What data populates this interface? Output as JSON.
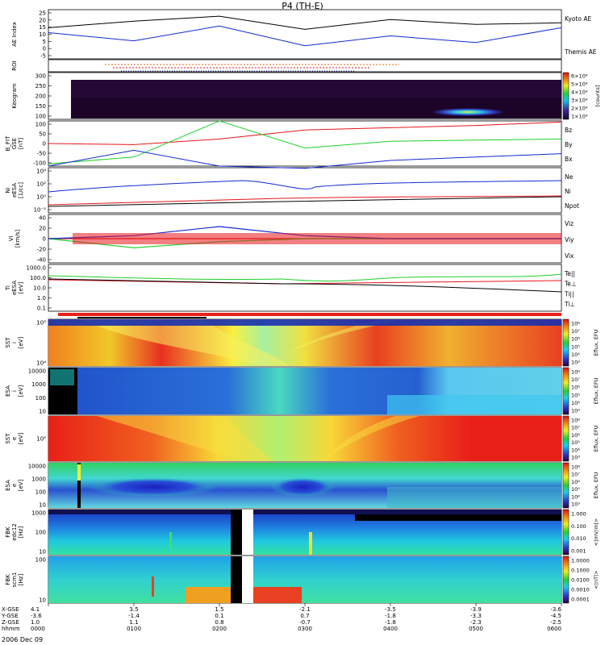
{
  "title": "P4 (TH-E)",
  "date": "2006 Dec 09",
  "colors": {
    "red": "#e8151b",
    "green": "#1fd02c",
    "blue": "#1428d2",
    "black": "#000000"
  },
  "panels": [
    {
      "id": "ae",
      "ylabel": "AE Index",
      "ticks": [
        "25",
        "20",
        "15",
        "10",
        "5",
        "0",
        "-5"
      ],
      "legend": [
        {
          "text": "Kyoto AE",
          "color": "blue"
        },
        {
          "text": "Themis AE",
          "color": "black"
        }
      ]
    },
    {
      "id": "roi",
      "ylabel": "ROI",
      "ticks": [],
      "legend": []
    },
    {
      "id": "keogram",
      "ylabel": "Keogram",
      "ticks": [
        "300",
        "250",
        "200",
        "150",
        "100"
      ],
      "colorbar_unit": "[counts]",
      "colorbar_ticks": [
        "6×10⁴",
        "5×10⁴",
        "4×10⁴",
        "3×10⁴",
        "2×10⁴",
        "1×10⁴"
      ]
    },
    {
      "id": "bfit",
      "ylabel": "B_FIT\nGSE\n[nT]",
      "ticks": [
        "100",
        "50",
        "0",
        "-50",
        "-100"
      ],
      "legend": [
        {
          "text": "Bz",
          "color": "red"
        },
        {
          "text": "By",
          "color": "green"
        },
        {
          "text": "Bx",
          "color": "blue"
        }
      ]
    },
    {
      "id": "ni",
      "ylabel": "Ni\neESA\n[1/cc]",
      "ticks": [
        "10⁴",
        "10²",
        "10⁰",
        "10⁻²"
      ],
      "legend": [
        {
          "text": "Ne",
          "color": "red"
        },
        {
          "text": "Ni",
          "color": "blue"
        },
        {
          "text": "Npot",
          "color": "blue"
        }
      ]
    },
    {
      "id": "vi",
      "ylabel": "Vi\n[km/s]",
      "ticks": [
        "40",
        "20",
        "0",
        "-20",
        "-40"
      ],
      "legend": [
        {
          "text": "Viz",
          "color": "red"
        },
        {
          "text": "Viy",
          "color": "green"
        },
        {
          "text": "Vix",
          "color": "blue"
        }
      ]
    },
    {
      "id": "ti",
      "ylabel": "Ti\neESA\n[eV]",
      "ticks": [
        "1000.0",
        "100.0",
        "10.0",
        "1.0",
        "0.1"
      ],
      "legend": [
        {
          "text": "Te||",
          "color": "black"
        },
        {
          "text": "Te⊥",
          "color": "red"
        },
        {
          "text": "Ti||",
          "color": "green"
        },
        {
          "text": "Ti⊥",
          "color": "blue"
        }
      ]
    },
    {
      "id": "sst_i",
      "ylabel": "SST\ni\n[eV]",
      "ticks": [
        "10⁵",
        "10⁴"
      ]
    },
    {
      "id": "esa_i",
      "ylabel": "ESA\ni\n[eV]",
      "ticks": [
        "10000",
        "1000",
        "100",
        "10"
      ]
    },
    {
      "id": "sst_e",
      "ylabel": "SST\ne\n[eV]",
      "ticks": [
        "10⁵"
      ]
    },
    {
      "id": "esa_e",
      "ylabel": "ESA\ne\n[eV]",
      "ticks": [
        "10000",
        "1000",
        "100",
        "10"
      ]
    },
    {
      "id": "fbk_e",
      "ylabel": "FBK\nedc12\n[Hz]",
      "ticks": [
        "1000",
        "100",
        "10"
      ]
    },
    {
      "id": "fbk_b",
      "ylabel": "FBK\nscm1\n[Hz]",
      "ticks": [
        "100",
        "10"
      ]
    }
  ],
  "spectra_colorbar": {
    "unit": "Eflux, EFU",
    "ticks": [
      "10⁸",
      "10⁷",
      "10⁶",
      "10⁵",
      "10⁴",
      "10³"
    ]
  },
  "fbk_colorbars": [
    {
      "unit": "<|mV/m|>",
      "ticks": [
        "1.000",
        "0.100",
        "0.010",
        "0.001"
      ]
    },
    {
      "unit": "<|nT|>",
      "ticks": [
        "1.0000",
        "0.1000",
        "0.0100",
        "0.0010",
        "0.0001"
      ]
    }
  ],
  "xaxis": {
    "row_labels": [
      "X-GSE",
      "Y-GSE",
      "Z-GSE",
      "hhmm"
    ],
    "columns": [
      [
        "4.1",
        "-3.6",
        "1.0",
        "0000"
      ],
      [
        "3.5",
        "-1.4",
        "1.1",
        "0100"
      ],
      [
        "1.5",
        "0.1",
        "0.8",
        "0200"
      ],
      [
        "-2.1",
        "0.7",
        "-0.7",
        "0300"
      ],
      [
        "-3.5",
        "-1.8",
        "-1.8",
        "0400"
      ],
      [
        "-3.9",
        "-3.3",
        "-2.3",
        "0500"
      ],
      [
        "-3.6",
        "-4.5",
        "-2.5",
        "0600"
      ]
    ]
  },
  "chart_data": {
    "type": "line",
    "title": "P4 (TH-E)",
    "x": [
      "0000",
      "0100",
      "0200",
      "0300",
      "0400",
      "0500",
      "0600"
    ],
    "series": [
      {
        "name": "Kyoto AE",
        "values": [
          11,
          6,
          15,
          3,
          9,
          5,
          14
        ]
      },
      {
        "name": "Themis AE",
        "values": [
          14,
          18,
          21,
          13,
          19,
          16,
          17
        ]
      },
      {
        "name": "Bz",
        "values": [
          0,
          -5,
          20,
          60,
          70,
          80,
          95
        ]
      },
      {
        "name": "By",
        "values": [
          -90,
          -60,
          100,
          -20,
          10,
          15,
          20
        ]
      },
      {
        "name": "Bx",
        "values": [
          -100,
          -30,
          -100,
          -110,
          -75,
          -60,
          -45
        ]
      },
      {
        "name": "Vix",
        "values": [
          0,
          5,
          20,
          5,
          0,
          0,
          0
        ]
      },
      {
        "name": "Viy",
        "values": [
          0,
          -15,
          -5,
          0,
          0,
          0,
          0
        ]
      },
      {
        "name": "Viz",
        "values": [
          0,
          0,
          0,
          0,
          0,
          0,
          0
        ]
      }
    ],
    "xlabel": "",
    "ylabel": ""
  }
}
